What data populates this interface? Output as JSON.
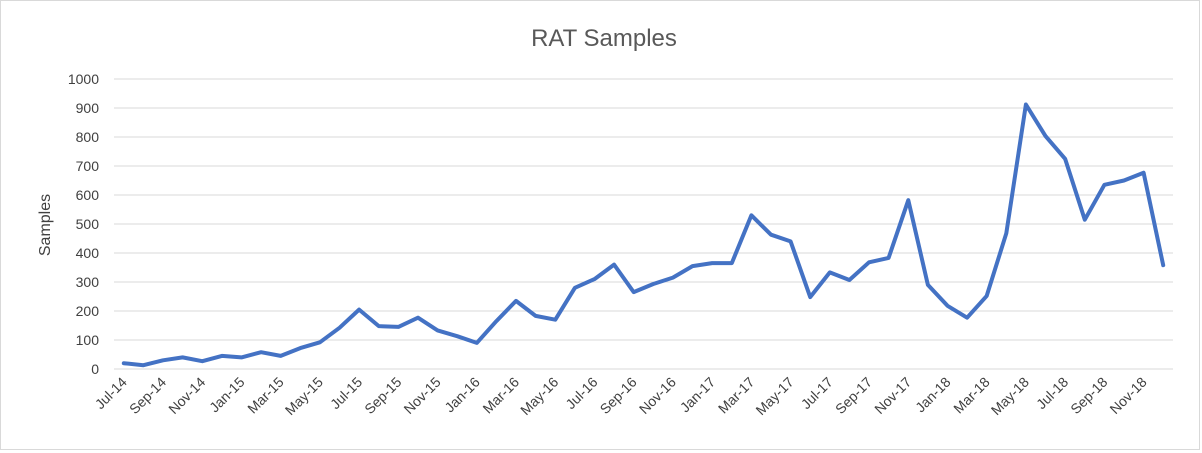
{
  "chart_data": {
    "type": "line",
    "title": "RAT Samples",
    "xlabel": "",
    "ylabel": "Samples",
    "ylim": [
      0,
      1000
    ],
    "yticks": [
      0,
      100,
      200,
      300,
      400,
      500,
      600,
      700,
      800,
      900,
      1000
    ],
    "grid": true,
    "legend": "none",
    "color": "#4472c4",
    "categories": [
      "Jul-14",
      "Aug-14",
      "Sep-14",
      "Oct-14",
      "Nov-14",
      "Dec-14",
      "Jan-15",
      "Feb-15",
      "Mar-15",
      "Apr-15",
      "May-15",
      "Jun-15",
      "Jul-15",
      "Aug-15",
      "Sep-15",
      "Oct-15",
      "Nov-15",
      "Dec-15",
      "Jan-16",
      "Feb-16",
      "Mar-16",
      "Apr-16",
      "May-16",
      "Jun-16",
      "Jul-16",
      "Aug-16",
      "Sep-16",
      "Oct-16",
      "Nov-16",
      "Dec-16",
      "Jan-17",
      "Feb-17",
      "Mar-17",
      "Apr-17",
      "May-17",
      "Jun-17",
      "Jul-17",
      "Aug-17",
      "Sep-17",
      "Oct-17",
      "Nov-17",
      "Dec-17",
      "Jan-18",
      "Feb-18",
      "Mar-18",
      "Apr-18",
      "May-18",
      "Jun-18",
      "Jul-18",
      "Aug-18",
      "Sep-18",
      "Oct-18",
      "Nov-18",
      "Dec-18"
    ],
    "tick_labels": [
      "Jul-14",
      "Sep-14",
      "Nov-14",
      "Jan-15",
      "Mar-15",
      "May-15",
      "Jul-15",
      "Sep-15",
      "Nov-15",
      "Jan-16",
      "Mar-16",
      "May-16",
      "Jul-16",
      "Sep-16",
      "Nov-16",
      "Jan-17",
      "Mar-17",
      "May-17",
      "Jul-17",
      "Sep-17",
      "Nov-17",
      "Jan-18",
      "Mar-18",
      "May-18",
      "Jul-18",
      "Sep-18",
      "Nov-18"
    ],
    "series": [
      {
        "name": "RAT Samples",
        "values": [
          20,
          13,
          30,
          40,
          27,
          45,
          40,
          58,
          45,
          72,
          92,
          142,
          205,
          148,
          145,
          177,
          133,
          113,
          90,
          165,
          235,
          183,
          170,
          280,
          310,
          360,
          265,
          293,
          315,
          355,
          365,
          365,
          530,
          463,
          440,
          248,
          333,
          307,
          368,
          383,
          582,
          290,
          218,
          177,
          252,
          468,
          912,
          803,
          725,
          515,
          635,
          650,
          677,
          358
        ]
      }
    ]
  }
}
